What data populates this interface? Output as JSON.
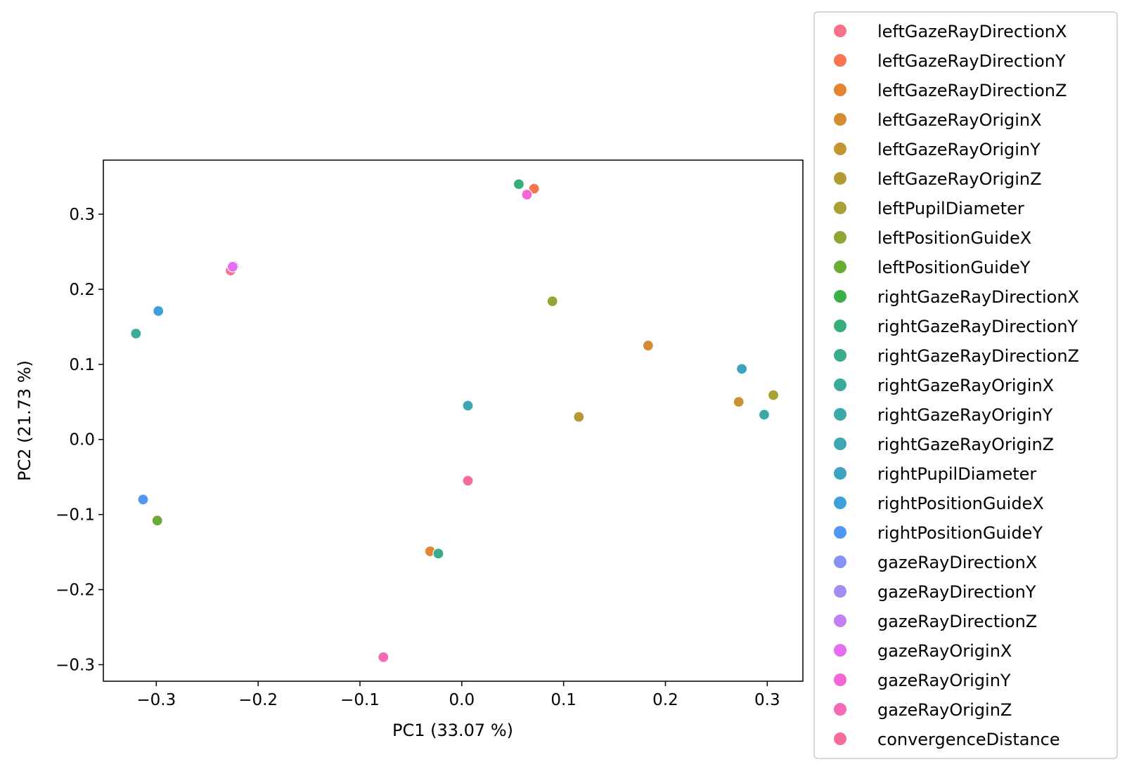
{
  "chart_data": {
    "type": "scatter",
    "xlabel": "PC1 (33.07 %)",
    "ylabel": "PC2 (21.73 %)",
    "xlim": [
      -0.352,
      0.335
    ],
    "ylim": [
      -0.322,
      0.372
    ],
    "xticks": [
      -0.3,
      -0.2,
      -0.1,
      0.0,
      0.1,
      0.2,
      0.3
    ],
    "xtick_labels": [
      "−0.3",
      "−0.2",
      "−0.1",
      "0.0",
      "0.1",
      "0.2",
      "0.3"
    ],
    "yticks": [
      -0.3,
      -0.2,
      -0.1,
      0.0,
      0.1,
      0.2,
      0.3
    ],
    "ytick_labels": [
      "−0.3",
      "−0.2",
      "−0.1",
      "0.0",
      "0.1",
      "0.2",
      "0.3"
    ],
    "grid": false,
    "legend_position": "outside-right",
    "series": [
      {
        "name": "leftGazeRayDirectionX",
        "color": "#f77189",
        "x": -0.227,
        "y": 0.225
      },
      {
        "name": "leftGazeRayDirectionY",
        "color": "#f7754f",
        "x": 0.071,
        "y": 0.334
      },
      {
        "name": "leftGazeRayDirectionZ",
        "color": "#e38430",
        "x": -0.031,
        "y": -0.149
      },
      {
        "name": "leftGazeRayOriginX",
        "color": "#d48b32",
        "x": 0.183,
        "y": 0.125
      },
      {
        "name": "leftGazeRayOriginY",
        "color": "#c79433",
        "x": 0.272,
        "y": 0.05
      },
      {
        "name": "leftGazeRayOriginZ",
        "color": "#b39b33",
        "x": 0.115,
        "y": 0.03
      },
      {
        "name": "leftPupilDiameter",
        "color": "#a9a133",
        "x": 0.306,
        "y": 0.059
      },
      {
        "name": "leftPositionGuideX",
        "color": "#8ea633",
        "x": 0.089,
        "y": 0.184
      },
      {
        "name": "leftPositionGuideY",
        "color": "#6aab34",
        "x": -0.299,
        "y": -0.108
      },
      {
        "name": "rightGazeRayDirectionX",
        "color": "#38b148",
        "x": null,
        "y": null
      },
      {
        "name": "rightGazeRayDirectionY",
        "color": "#36ae7a",
        "x": 0.056,
        "y": 0.34
      },
      {
        "name": "rightGazeRayDirectionZ",
        "color": "#37ac8f",
        "x": -0.023,
        "y": -0.152
      },
      {
        "name": "rightGazeRayOriginX",
        "color": "#38ab9b",
        "x": -0.32,
        "y": 0.141
      },
      {
        "name": "rightGazeRayOriginY",
        "color": "#3aa9a7",
        "x": 0.297,
        "y": 0.033
      },
      {
        "name": "rightGazeRayOriginZ",
        "color": "#3ba7b2",
        "x": 0.006,
        "y": 0.045
      },
      {
        "name": "rightPupilDiameter",
        "color": "#3ca4c1",
        "x": 0.275,
        "y": 0.094
      },
      {
        "name": "rightPositionGuideX",
        "color": "#3ea0d9",
        "x": -0.298,
        "y": 0.171
      },
      {
        "name": "rightPositionGuideY",
        "color": "#5097f4",
        "x": -0.313,
        "y": -0.08
      },
      {
        "name": "gazeRayDirectionX",
        "color": "#8591f4",
        "x": -0.224,
        "y": 0.231
      },
      {
        "name": "gazeRayDirectionY",
        "color": "#a48cf4",
        "x": -0.224,
        "y": 0.231
      },
      {
        "name": "gazeRayDirectionZ",
        "color": "#c57ff4",
        "x": -0.224,
        "y": 0.231
      },
      {
        "name": "gazeRayOriginX",
        "color": "#e36ef4",
        "x": -0.225,
        "y": 0.23
      },
      {
        "name": "gazeRayOriginY",
        "color": "#f466d5",
        "x": 0.064,
        "y": 0.326
      },
      {
        "name": "gazeRayOriginZ",
        "color": "#f569b5",
        "x": -0.077,
        "y": -0.29
      },
      {
        "name": "convergenceDistance",
        "color": "#f66c9e",
        "x": 0.006,
        "y": -0.055
      }
    ]
  }
}
